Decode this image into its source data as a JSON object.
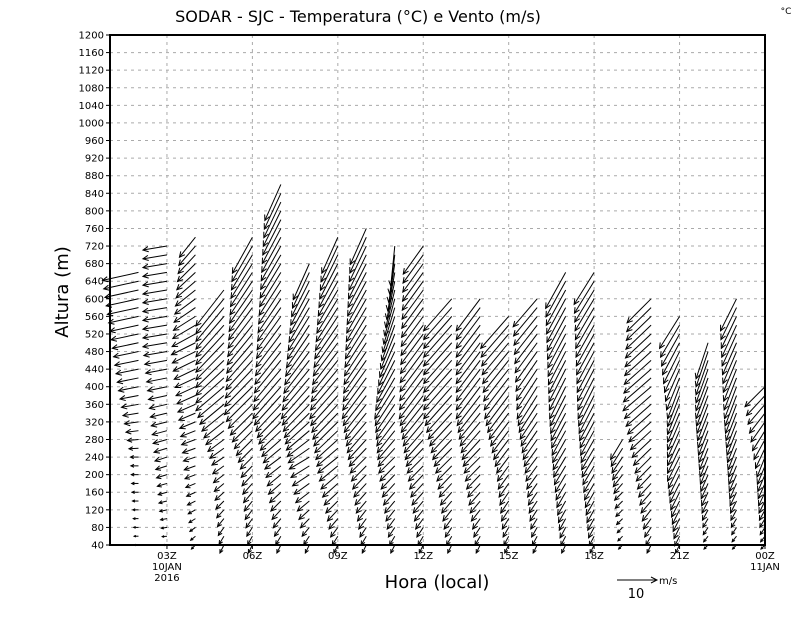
{
  "chart_data": {
    "type": "vector",
    "title": "SODAR - SJC - Temperatura (°C) e Vento (m/s)",
    "corner_label": "°C",
    "xlabel": "Hora (local)",
    "ylabel": "Altura (m)",
    "xlim": [
      1,
      24
    ],
    "ylim": [
      40,
      1200
    ],
    "yticks": [
      40,
      80,
      120,
      160,
      200,
      240,
      280,
      320,
      360,
      400,
      440,
      480,
      520,
      560,
      600,
      640,
      680,
      720,
      760,
      800,
      840,
      880,
      920,
      960,
      1000,
      1040,
      1080,
      1120,
      1160,
      1200
    ],
    "xticks": [
      {
        "hour": 3,
        "label": "03Z",
        "sub1": "10JAN",
        "sub2": "2016"
      },
      {
        "hour": 6,
        "label": "06Z"
      },
      {
        "hour": 9,
        "label": "09Z"
      },
      {
        "hour": 12,
        "label": "12Z"
      },
      {
        "hour": 15,
        "label": "15Z"
      },
      {
        "hour": 18,
        "label": "18Z"
      },
      {
        "hour": 21,
        "label": "21Z"
      },
      {
        "hour": 24,
        "label": "00Z",
        "sub1": "11JAN"
      }
    ],
    "grid": true,
    "reference_vector": {
      "value": 10,
      "label": "10",
      "unit": "m/s"
    },
    "level_step_m": 20,
    "columns": [
      {
        "hour": 2,
        "top": 660,
        "profile": [
          [
            40,
            -1,
            0
          ],
          [
            240,
            -2,
            0
          ],
          [
            400,
            -5,
            -1
          ],
          [
            660,
            -9,
            -2
          ]
        ]
      },
      {
        "hour": 3,
        "top": 720,
        "profile": [
          [
            40,
            -1,
            0
          ],
          [
            240,
            -3,
            -1
          ],
          [
            500,
            -6,
            -1
          ],
          [
            720,
            -6,
            -1
          ]
        ]
      },
      {
        "hour": 4,
        "top": 740,
        "profile": [
          [
            40,
            -1,
            -1
          ],
          [
            240,
            -3,
            -1
          ],
          [
            500,
            -6,
            -3
          ],
          [
            740,
            -4,
            -5
          ]
        ]
      },
      {
        "hour": 5,
        "top": 620,
        "profile": [
          [
            40,
            -1,
            -2
          ],
          [
            240,
            -3,
            -2
          ],
          [
            400,
            -7,
            -6
          ],
          [
            620,
            -7,
            -9
          ]
        ]
      },
      {
        "hour": 6,
        "top": 740,
        "profile": [
          [
            40,
            -1,
            -2
          ],
          [
            240,
            -3,
            -3
          ],
          [
            400,
            -7,
            -7
          ],
          [
            740,
            -5,
            -9
          ]
        ]
      },
      {
        "hour": 7,
        "top": 860,
        "profile": [
          [
            40,
            -1,
            -2
          ],
          [
            240,
            -4,
            -3
          ],
          [
            400,
            -7,
            -8
          ],
          [
            860,
            -4,
            -9
          ]
        ]
      },
      {
        "hour": 8,
        "top": 680,
        "profile": [
          [
            40,
            -1,
            -2
          ],
          [
            240,
            -5,
            -3
          ],
          [
            400,
            -7,
            -8
          ],
          [
            680,
            -4,
            -9
          ]
        ]
      },
      {
        "hour": 9,
        "top": 740,
        "profile": [
          [
            40,
            -1,
            -2
          ],
          [
            240,
            -5,
            -4
          ],
          [
            400,
            -7,
            -8
          ],
          [
            740,
            -4,
            -9
          ]
        ]
      },
      {
        "hour": 10,
        "top": 760,
        "profile": [
          [
            40,
            -1,
            -2
          ],
          [
            240,
            -4,
            -4
          ],
          [
            400,
            -6,
            -8
          ],
          [
            760,
            -4,
            -9
          ]
        ]
      },
      {
        "hour": 11,
        "top": 720,
        "profile": [
          [
            40,
            -1,
            -2
          ],
          [
            240,
            -4,
            -4
          ],
          [
            400,
            -5,
            -8
          ],
          [
            720,
            -1,
            -10
          ]
        ]
      },
      {
        "hour": 12,
        "top": 720,
        "profile": [
          [
            40,
            -1,
            -2
          ],
          [
            240,
            -4,
            -4
          ],
          [
            400,
            -6,
            -8
          ],
          [
            720,
            -5,
            -7
          ]
        ]
      },
      {
        "hour": 13,
        "top": 600,
        "profile": [
          [
            40,
            -1,
            -2
          ],
          [
            240,
            -4,
            -4
          ],
          [
            400,
            -7,
            -8
          ],
          [
            600,
            -7,
            -8
          ]
        ]
      },
      {
        "hour": 14,
        "top": 600,
        "profile": [
          [
            40,
            -1,
            -2
          ],
          [
            240,
            -4,
            -4
          ],
          [
            400,
            -6,
            -8
          ],
          [
            600,
            -6,
            -8
          ]
        ]
      },
      {
        "hour": 15,
        "top": 560,
        "profile": [
          [
            40,
            -1,
            -2
          ],
          [
            240,
            -3,
            -4
          ],
          [
            400,
            -6,
            -8
          ],
          [
            560,
            -7,
            -8
          ]
        ]
      },
      {
        "hour": 16,
        "top": 600,
        "profile": [
          [
            40,
            -1,
            -2
          ],
          [
            240,
            -3,
            -4
          ],
          [
            400,
            -5,
            -8
          ],
          [
            600,
            -6,
            -7
          ]
        ]
      },
      {
        "hour": 17,
        "top": 660,
        "profile": [
          [
            40,
            -1,
            -2
          ],
          [
            240,
            -3,
            -5
          ],
          [
            400,
            -4,
            -8
          ],
          [
            660,
            -5,
            -9
          ]
        ]
      },
      {
        "hour": 18,
        "top": 660,
        "profile": [
          [
            40,
            -1,
            -2
          ],
          [
            240,
            -3,
            -5
          ],
          [
            400,
            -4,
            -8
          ],
          [
            660,
            -5,
            -8
          ]
        ]
      },
      {
        "hour": 19,
        "top": 280,
        "profile": [
          [
            40,
            -1,
            -1
          ],
          [
            160,
            -2,
            -2
          ],
          [
            280,
            -3,
            -5
          ]
        ]
      },
      {
        "hour": 20,
        "top": 600,
        "profile": [
          [
            40,
            -1,
            -2
          ],
          [
            240,
            -4,
            -4
          ],
          [
            400,
            -7,
            -6
          ],
          [
            600,
            -6,
            -6
          ]
        ]
      },
      {
        "hour": 21,
        "top": 560,
        "profile": [
          [
            40,
            -1,
            -2
          ],
          [
            240,
            -3,
            -6
          ],
          [
            400,
            -3,
            -8
          ],
          [
            560,
            -5,
            -8
          ]
        ]
      },
      {
        "hour": 22,
        "top": 500,
        "profile": [
          [
            40,
            -1,
            -1
          ],
          [
            240,
            -2,
            -5
          ],
          [
            400,
            -3,
            -8
          ],
          [
            500,
            -3,
            -9
          ]
        ]
      },
      {
        "hour": 23,
        "top": 600,
        "profile": [
          [
            40,
            -1,
            -1
          ],
          [
            240,
            -2,
            -5
          ],
          [
            400,
            -3,
            -8
          ],
          [
            600,
            -4,
            -8
          ]
        ]
      },
      {
        "hour": 24,
        "top": 400,
        "profile": [
          [
            40,
            -1,
            -1
          ],
          [
            240,
            -2,
            -5
          ],
          [
            400,
            -5,
            -5
          ]
        ]
      }
    ]
  }
}
